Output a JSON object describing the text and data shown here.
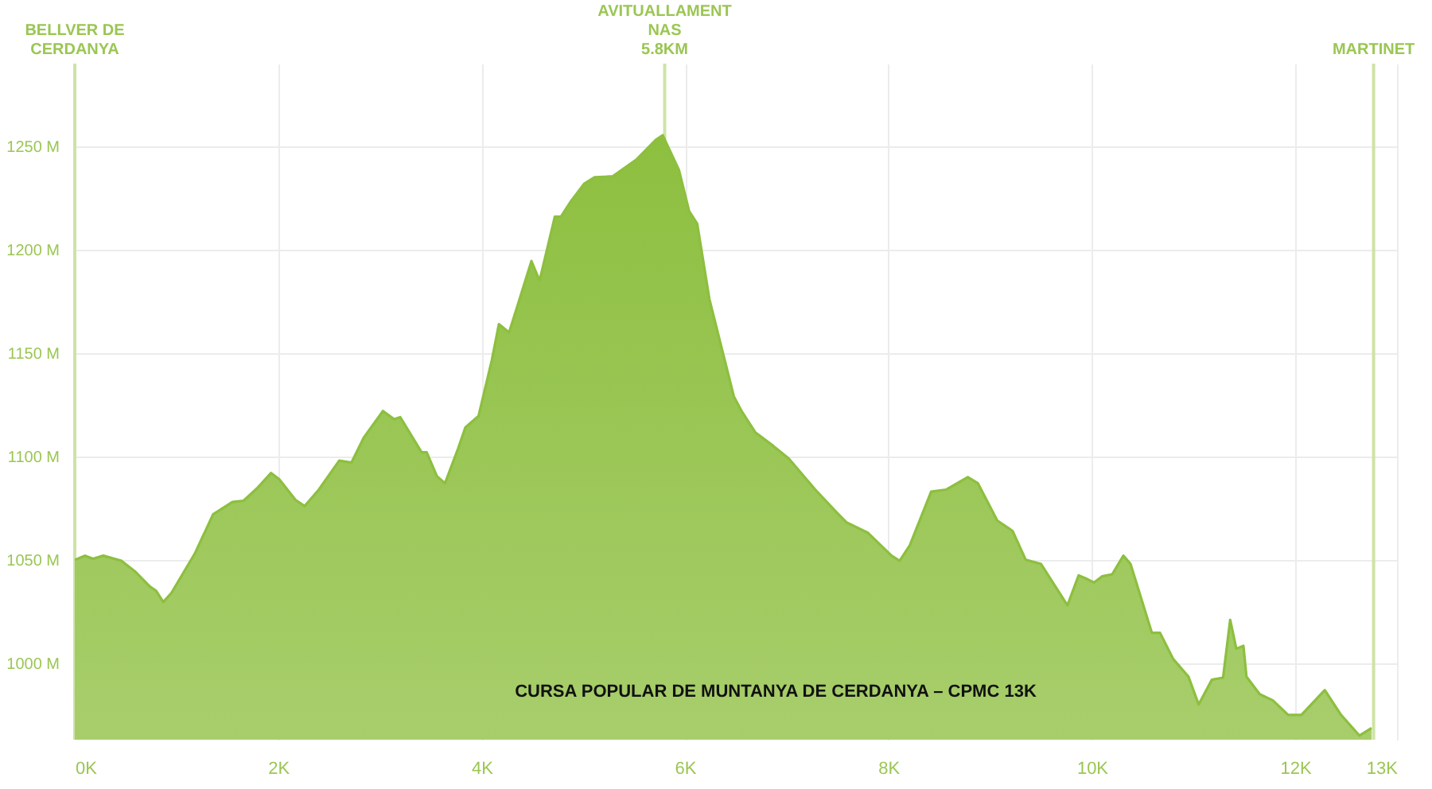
{
  "chart_data": {
    "type": "area",
    "x": [
      0,
      0.1,
      0.18,
      0.28,
      0.46,
      0.59,
      0.74,
      0.8,
      0.87,
      0.95,
      1.18,
      1.36,
      1.55,
      1.66,
      1.8,
      1.93,
      2.01,
      2.17,
      2.26,
      2.4,
      2.6,
      2.72,
      2.84,
      3.03,
      3.14,
      3.2,
      3.41,
      3.46,
      3.56,
      3.64,
      3.77,
      3.84,
      3.97,
      4.1,
      4.17,
      4.27,
      4.36,
      4.49,
      4.57,
      4.72,
      4.78,
      4.88,
      5.01,
      5.11,
      5.29,
      5.52,
      5.71,
      5.78,
      5.94,
      6.04,
      6.12,
      6.24,
      6.48,
      6.56,
      6.69,
      6.87,
      7.02,
      7.28,
      7.49,
      7.59,
      7.8,
      8.03,
      8.11,
      8.21,
      8.42,
      8.57,
      8.78,
      8.88,
      9.07,
      9.22,
      9.35,
      9.5,
      9.76,
      9.87,
      9.94,
      10.02,
      10.1,
      10.2,
      10.31,
      10.38,
      10.59,
      10.67,
      10.8,
      10.95,
      11.05,
      11.18,
      11.29,
      11.36,
      11.42,
      11.49,
      11.52,
      11.65,
      11.78,
      11.93,
      12.06,
      12.29,
      12.45,
      12.63,
      12.75
    ],
    "series": [
      {
        "color": "#8dbf3f",
        "values": [
          1050,
          1052,
          1050.5,
          1052,
          1049.5,
          1044.5,
          1037,
          1035,
          1029.6,
          1034,
          1053,
          1072,
          1078,
          1078.6,
          1085,
          1092,
          1089,
          1079,
          1076,
          1084,
          1098,
          1097,
          1109,
          1122,
          1118,
          1119,
          1102,
          1102,
          1090.5,
          1087,
          1104,
          1114,
          1119.6,
          1146.5,
          1164,
          1160,
          1174,
          1194.5,
          1185,
          1216,
          1216,
          1223.6,
          1232,
          1235,
          1235.5,
          1243.5,
          1253,
          1255.4,
          1238.6,
          1218.7,
          1212.5,
          1176,
          1129,
          1121.6,
          1111.7,
          1105,
          1099,
          1084,
          1073,
          1068,
          1063,
          1052,
          1049.5,
          1057,
          1083,
          1084,
          1090,
          1087,
          1069,
          1064,
          1050,
          1048,
          1028,
          1042.5,
          1041,
          1039,
          1042,
          1043,
          1052,
          1048,
          1014.7,
          1014.7,
          1002,
          993.5,
          980,
          992,
          993,
          1021,
          1007,
          1008.4,
          993.5,
          985,
          982,
          975,
          975,
          987,
          975,
          965,
          968.6
        ]
      }
    ],
    "xlim": [
      0,
      13
    ],
    "xticks": [
      {
        "value": 0,
        "label": "0K"
      },
      {
        "value": 2,
        "label": "2K"
      },
      {
        "value": 4,
        "label": "4K"
      },
      {
        "value": 6,
        "label": "6K"
      },
      {
        "value": 8,
        "label": "8K"
      },
      {
        "value": 10,
        "label": "10K"
      },
      {
        "value": 12,
        "label": "12K"
      },
      {
        "value": 13,
        "label": "13K"
      }
    ],
    "ylim": [
      963,
      1290
    ],
    "yticks": [
      {
        "value": 1000,
        "label": "1000 M"
      },
      {
        "value": 1050,
        "label": "1050 M"
      },
      {
        "value": 1100,
        "label": "1100 M"
      },
      {
        "value": 1150,
        "label": "1150 M"
      },
      {
        "value": 1200,
        "label": "1200 M"
      },
      {
        "value": 1250,
        "label": "1250 M"
      }
    ],
    "grid": true,
    "ref_lines": [
      {
        "axis": "x",
        "value": 0,
        "label": "BELLVER DE\nCERDANYA",
        "color": "#cfe3a6"
      },
      {
        "axis": "x",
        "value": 5.8,
        "label": "AVITUALLAMENT\nNAS\n5.8KM",
        "color": "#cfe3a6"
      },
      {
        "axis": "x",
        "value": 12.77,
        "label": "MARTINET",
        "color": "#cfe3a6"
      }
    ],
    "annotations": [
      "CURSA POPULAR DE MUNTANYA DE CERDANYA – CPMC 13K"
    ]
  }
}
